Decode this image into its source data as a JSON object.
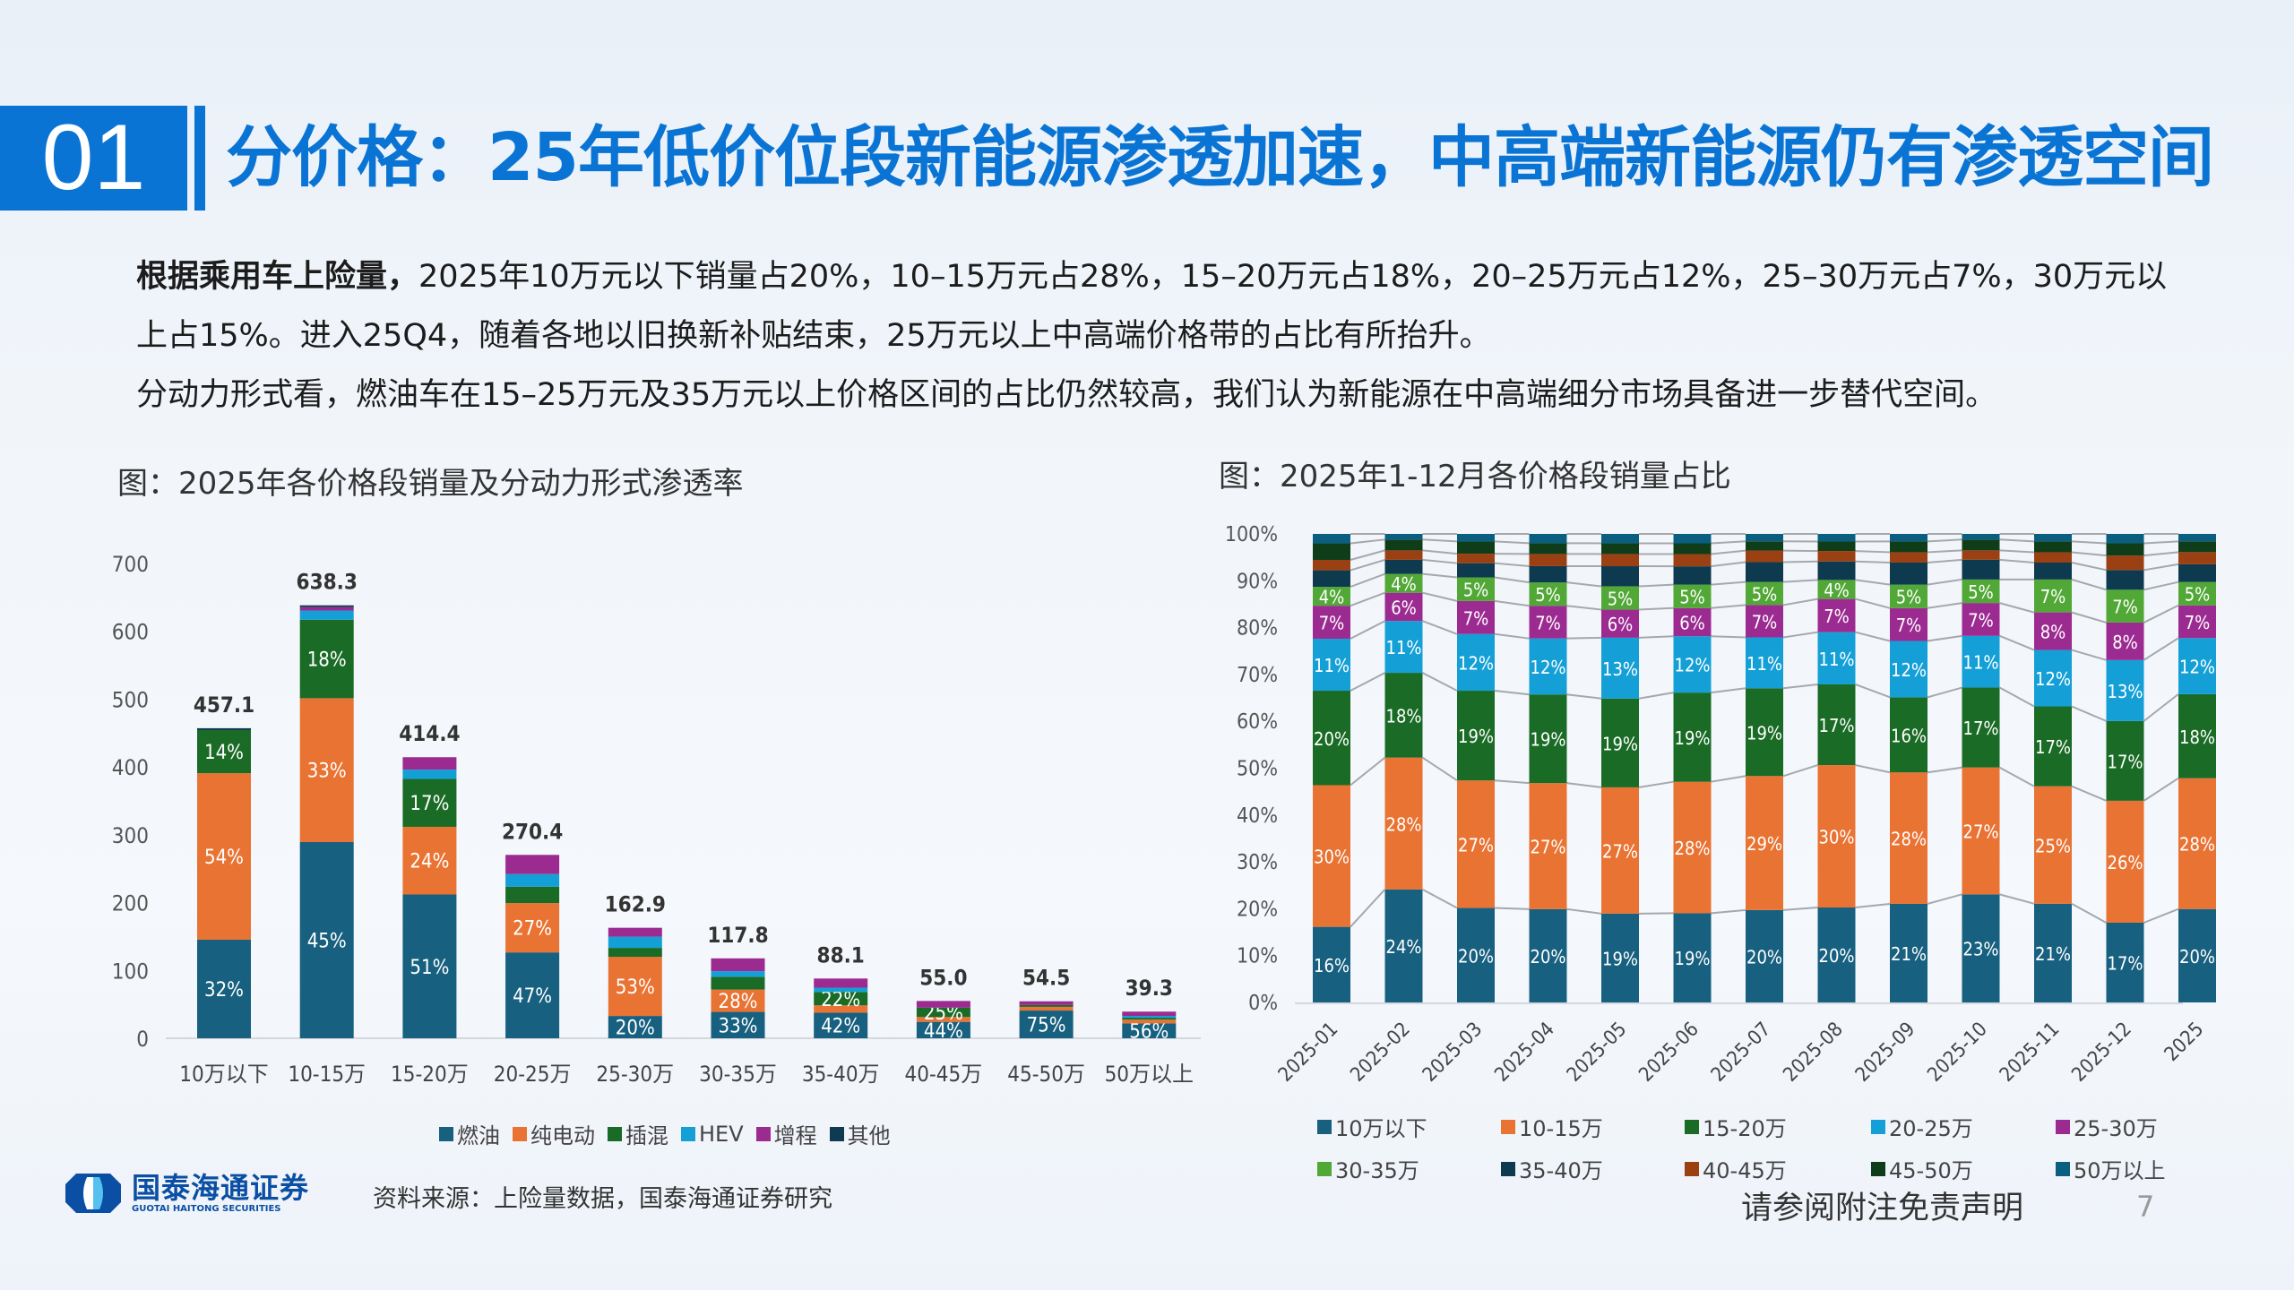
{
  "header": {
    "section_number": "01",
    "title": "分价格：25年低价位段新能源渗透加速，中高端新能源仍有渗透空间",
    "accent_color": "#0a74d4"
  },
  "body": {
    "p1_bold": "根据乘用车上险量，",
    "p1_rest": "2025年10万元以下销量占20%，10–15万元占28%，15–20万元占18%，20–25万元占12%，25–30万元占7%，30万元以上占15%。进入25Q4，随着各地以旧换新补贴结束，25万元以上中高端价格带的占比有所抬升。",
    "p2": "分动力形式看，燃油车在15–25万元及35万元以上价格区间的占比仍然较高，我们认为新能源在中高端细分市场具备进一步替代空间。"
  },
  "chart_titles": {
    "left": "图：2025年各价格段销量及分动力形式渗透率",
    "right": "图：2025年1-12月各价格段销量占比"
  },
  "chart_data": [
    {
      "type": "bar",
      "stacked": true,
      "categories": [
        "10万以下",
        "10-15万",
        "15-20万",
        "20-25万",
        "25-30万",
        "30-35万",
        "35-40万",
        "40-45万",
        "45-50万",
        "50万以上"
      ],
      "totals": [
        457.1,
        638.3,
        414.4,
        270.4,
        162.9,
        117.8,
        88.1,
        55.0,
        54.5,
        39.3
      ],
      "total_labels": [
        "457.1",
        "638.3",
        "414.4",
        "270.4",
        "162.9",
        "117.8",
        "88.1",
        "55.0",
        "54.5",
        "39.3"
      ],
      "ylim": [
        0,
        700
      ],
      "yticks": [
        "0",
        "100",
        "200",
        "300",
        "400",
        "500",
        "600",
        "700"
      ],
      "legend_position": "bottom",
      "grid": false,
      "series": [
        {
          "name": "燃油",
          "color": "#17607f",
          "share_pct": [
            32,
            45,
            51,
            47,
            20,
            33,
            42,
            44,
            75,
            56
          ],
          "labels": [
            "32%",
            "45%",
            "51%",
            "47%",
            "20%",
            "33%",
            "42%",
            "44%",
            "75%",
            "56%"
          ]
        },
        {
          "name": "纯电动",
          "color": "#e97333",
          "share_pct": [
            54,
            33,
            24,
            27,
            53,
            28,
            12,
            13,
            10,
            14
          ],
          "labels": [
            "54%",
            "33%",
            "24%",
            "27%",
            "53%",
            "28%",
            null,
            null,
            null,
            null
          ]
        },
        {
          "name": "插混",
          "color": "#1a6b26",
          "share_pct": [
            14,
            18,
            17,
            9,
            8,
            16,
            22,
            25,
            5,
            7
          ],
          "labels": [
            "14%",
            "18%",
            "17%",
            null,
            null,
            null,
            "22%",
            "25%",
            null,
            null
          ]
        },
        {
          "name": "HEV",
          "color": "#14a0d6",
          "share_pct": [
            0,
            2.1,
            3.3,
            6.9,
            10,
            7,
            7,
            0,
            0,
            7
          ],
          "labels": [
            null,
            null,
            null,
            null,
            null,
            null,
            null,
            null,
            null,
            null
          ]
        },
        {
          "name": "增程",
          "color": "#9c2b91",
          "share_pct": [
            0,
            0.8,
            4.4,
            10.5,
            8,
            16,
            15,
            18,
            10,
            16
          ],
          "labels": [
            null,
            null,
            null,
            null,
            null,
            null,
            null,
            null,
            null,
            null
          ]
        },
        {
          "name": "其他",
          "color": "#0e3a52",
          "share_pct": [
            0.6,
            0.4,
            0,
            0,
            0,
            0,
            0,
            0,
            0,
            0
          ],
          "labels": [
            null,
            null,
            null,
            null,
            null,
            null,
            null,
            null,
            null,
            null
          ]
        }
      ]
    },
    {
      "type": "bar",
      "stacked": true,
      "percent": true,
      "categories": [
        "2025-01",
        "2025-02",
        "2025-03",
        "2025-04",
        "2025-05",
        "2025-06",
        "2025-07",
        "2025-08",
        "2025-09",
        "2025-10",
        "2025-11",
        "2025-12",
        "2025"
      ],
      "ylim": [
        0,
        100
      ],
      "yticks": [
        "0%",
        "10%",
        "20%",
        "30%",
        "40%",
        "50%",
        "60%",
        "70%",
        "80%",
        "90%",
        "100%"
      ],
      "legend_position": "bottom",
      "grid": false,
      "series_lines": true,
      "series": [
        {
          "name": "10万以下",
          "color": "#17607f",
          "values": [
            16,
            24,
            20,
            20,
            19,
            19,
            20,
            20,
            21,
            23,
            21,
            17,
            20
          ],
          "labeled": true
        },
        {
          "name": "10-15万",
          "color": "#e97333",
          "values": [
            30,
            28,
            27,
            27,
            27,
            28,
            29,
            30,
            28,
            27,
            25,
            26,
            28
          ],
          "labeled": true
        },
        {
          "name": "15-20万",
          "color": "#1a6b26",
          "values": [
            20,
            18,
            19,
            19,
            19,
            19,
            19,
            17,
            16,
            17,
            17,
            17,
            18
          ],
          "labeled": true
        },
        {
          "name": "20-25万",
          "color": "#14a0d6",
          "values": [
            11,
            11,
            12,
            12,
            13,
            12,
            11,
            11,
            12,
            11,
            12,
            13,
            12
          ],
          "labeled": true
        },
        {
          "name": "25-30万",
          "color": "#9c2b91",
          "values": [
            7,
            6,
            7,
            7,
            6,
            6,
            7,
            7,
            7,
            7,
            8,
            8,
            7
          ],
          "labeled": true
        },
        {
          "name": "30-35万",
          "color": "#52a836",
          "values": [
            4,
            4,
            5,
            5,
            5,
            5,
            5,
            4,
            5,
            5,
            7,
            7,
            5
          ],
          "labeled": true
        },
        {
          "name": "35-40万",
          "color": "#0e3a4f",
          "values": [
            3.5,
            3,
            3,
            3.5,
            4.3,
            3.9,
            4.3,
            3.9,
            4.7,
            4.2,
            3.6,
            4.2,
            3.8
          ],
          "labeled": false
        },
        {
          "name": "40-45万",
          "color": "#9a4012",
          "values": [
            2.2,
            2,
            2,
            2.6,
            2.6,
            2.6,
            2.5,
            2.2,
            2.2,
            2,
            2.2,
            3.1,
            2.6
          ],
          "labeled": false
        },
        {
          "name": "45-50万",
          "color": "#0f3d19",
          "values": [
            3.5,
            2.3,
            2.6,
            2.3,
            2.3,
            2.3,
            2,
            2,
            2.3,
            2.3,
            2.3,
            2.6,
            2.3
          ],
          "labeled": false
        },
        {
          "name": "50万以上",
          "color": "#0a5f80",
          "values": [
            2,
            1.2,
            1.6,
            2,
            2,
            2,
            1.6,
            1.6,
            1.6,
            1.2,
            1.6,
            2,
            1.6
          ],
          "labeled": false
        }
      ]
    }
  ],
  "footer": {
    "logo_cn": "国泰海通证券",
    "logo_en": "GUOTAI HAITONG SECURITIES",
    "source": "资料来源：上险量数据，国泰海通证券研究",
    "disclaimer": "请参阅附注免责声明",
    "page_number": "7"
  }
}
